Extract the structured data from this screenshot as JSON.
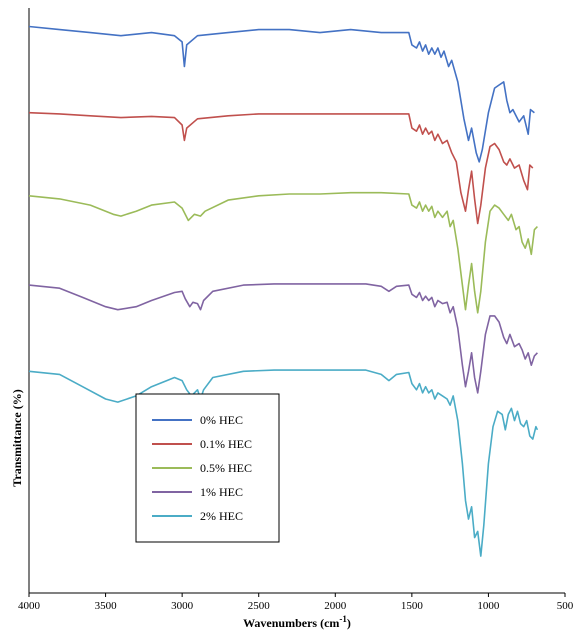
{
  "chart_data": {
    "type": "line",
    "title": "",
    "xlabel": "Wavenumbers (cm",
    "xlabel_sup": "-1",
    "xlabel_close": ")",
    "ylabel": "Transmittance (%)",
    "xlim": [
      4000,
      500
    ],
    "x_reversed": true,
    "y_units": "offset transmittance (unitless, stacked)",
    "xticks": [
      "4000",
      "3500",
      "3000",
      "2500",
      "2000",
      "1500",
      "1000",
      "500"
    ],
    "grid": false,
    "legend_position": "lower-left",
    "series": [
      {
        "name": "0% HEC",
        "color": "#4472C4",
        "points": [
          [
            4000,
            6.2
          ],
          [
            3800,
            6.15
          ],
          [
            3600,
            6.1
          ],
          [
            3400,
            6.05
          ],
          [
            3200,
            6.1
          ],
          [
            3050,
            6.05
          ],
          [
            3000,
            5.95
          ],
          [
            2985,
            5.55
          ],
          [
            2970,
            5.9
          ],
          [
            2900,
            6.05
          ],
          [
            2700,
            6.1
          ],
          [
            2500,
            6.15
          ],
          [
            2300,
            6.15
          ],
          [
            2100,
            6.1
          ],
          [
            1900,
            6.15
          ],
          [
            1700,
            6.1
          ],
          [
            1520,
            6.1
          ],
          [
            1500,
            5.9
          ],
          [
            1470,
            5.85
          ],
          [
            1450,
            5.95
          ],
          [
            1430,
            5.8
          ],
          [
            1410,
            5.9
          ],
          [
            1390,
            5.75
          ],
          [
            1370,
            5.85
          ],
          [
            1350,
            5.75
          ],
          [
            1330,
            5.85
          ],
          [
            1310,
            5.7
          ],
          [
            1290,
            5.8
          ],
          [
            1260,
            5.55
          ],
          [
            1240,
            5.65
          ],
          [
            1200,
            5.3
          ],
          [
            1160,
            4.7
          ],
          [
            1130,
            4.35
          ],
          [
            1110,
            4.55
          ],
          [
            1080,
            4.15
          ],
          [
            1060,
            4.0
          ],
          [
            1040,
            4.2
          ],
          [
            1000,
            4.8
          ],
          [
            960,
            5.2
          ],
          [
            930,
            5.25
          ],
          [
            900,
            5.3
          ],
          [
            880,
            5.0
          ],
          [
            860,
            4.8
          ],
          [
            840,
            4.85
          ],
          [
            800,
            4.65
          ],
          [
            770,
            4.75
          ],
          [
            740,
            4.45
          ],
          [
            725,
            4.85
          ],
          [
            700,
            4.8
          ]
        ]
      },
      {
        "name": "0.1% HEC",
        "color": "#C0504D",
        "points": [
          [
            4000,
            4.8
          ],
          [
            3800,
            4.78
          ],
          [
            3600,
            4.75
          ],
          [
            3400,
            4.72
          ],
          [
            3200,
            4.74
          ],
          [
            3050,
            4.72
          ],
          [
            3000,
            4.6
          ],
          [
            2985,
            4.35
          ],
          [
            2970,
            4.55
          ],
          [
            2900,
            4.7
          ],
          [
            2700,
            4.75
          ],
          [
            2500,
            4.78
          ],
          [
            2300,
            4.78
          ],
          [
            2100,
            4.78
          ],
          [
            1900,
            4.78
          ],
          [
            1700,
            4.78
          ],
          [
            1520,
            4.78
          ],
          [
            1500,
            4.55
          ],
          [
            1470,
            4.5
          ],
          [
            1450,
            4.6
          ],
          [
            1430,
            4.45
          ],
          [
            1410,
            4.55
          ],
          [
            1390,
            4.45
          ],
          [
            1370,
            4.5
          ],
          [
            1350,
            4.35
          ],
          [
            1330,
            4.45
          ],
          [
            1300,
            4.3
          ],
          [
            1270,
            4.35
          ],
          [
            1240,
            4.15
          ],
          [
            1210,
            4.0
          ],
          [
            1180,
            3.5
          ],
          [
            1150,
            3.2
          ],
          [
            1130,
            3.55
          ],
          [
            1110,
            3.85
          ],
          [
            1090,
            3.4
          ],
          [
            1070,
            3.0
          ],
          [
            1050,
            3.3
          ],
          [
            1020,
            3.9
          ],
          [
            990,
            4.25
          ],
          [
            960,
            4.3
          ],
          [
            930,
            4.2
          ],
          [
            900,
            4.0
          ],
          [
            880,
            3.95
          ],
          [
            860,
            4.05
          ],
          [
            830,
            3.9
          ],
          [
            800,
            3.95
          ],
          [
            770,
            3.7
          ],
          [
            745,
            3.55
          ],
          [
            730,
            3.95
          ],
          [
            710,
            3.9
          ]
        ]
      },
      {
        "name": "0.5% HEC",
        "color": "#9BBB59",
        "points": [
          [
            4000,
            3.45
          ],
          [
            3800,
            3.4
          ],
          [
            3600,
            3.3
          ],
          [
            3450,
            3.15
          ],
          [
            3400,
            3.12
          ],
          [
            3300,
            3.2
          ],
          [
            3200,
            3.3
          ],
          [
            3050,
            3.35
          ],
          [
            3000,
            3.25
          ],
          [
            2960,
            3.05
          ],
          [
            2920,
            3.15
          ],
          [
            2880,
            3.12
          ],
          [
            2850,
            3.2
          ],
          [
            2700,
            3.38
          ],
          [
            2500,
            3.45
          ],
          [
            2300,
            3.48
          ],
          [
            2100,
            3.48
          ],
          [
            1900,
            3.5
          ],
          [
            1700,
            3.5
          ],
          [
            1520,
            3.48
          ],
          [
            1500,
            3.3
          ],
          [
            1470,
            3.25
          ],
          [
            1450,
            3.35
          ],
          [
            1430,
            3.2
          ],
          [
            1410,
            3.3
          ],
          [
            1390,
            3.2
          ],
          [
            1370,
            3.28
          ],
          [
            1350,
            3.1
          ],
          [
            1330,
            3.2
          ],
          [
            1300,
            3.1
          ],
          [
            1270,
            3.2
          ],
          [
            1250,
            2.95
          ],
          [
            1230,
            3.05
          ],
          [
            1200,
            2.6
          ],
          [
            1170,
            2.0
          ],
          [
            1150,
            1.6
          ],
          [
            1130,
            2.0
          ],
          [
            1110,
            2.35
          ],
          [
            1090,
            1.9
          ],
          [
            1070,
            1.55
          ],
          [
            1050,
            1.9
          ],
          [
            1020,
            2.7
          ],
          [
            990,
            3.2
          ],
          [
            960,
            3.3
          ],
          [
            930,
            3.25
          ],
          [
            900,
            3.15
          ],
          [
            870,
            3.05
          ],
          [
            850,
            3.15
          ],
          [
            820,
            2.9
          ],
          [
            800,
            2.95
          ],
          [
            780,
            2.7
          ],
          [
            760,
            2.6
          ],
          [
            740,
            2.75
          ],
          [
            720,
            2.5
          ],
          [
            700,
            2.9
          ],
          [
            680,
            2.95
          ]
        ]
      },
      {
        "name": "1% HEC",
        "color": "#8064A2",
        "points": [
          [
            4000,
            2.0
          ],
          [
            3800,
            1.95
          ],
          [
            3650,
            1.8
          ],
          [
            3500,
            1.65
          ],
          [
            3420,
            1.6
          ],
          [
            3300,
            1.65
          ],
          [
            3200,
            1.75
          ],
          [
            3050,
            1.88
          ],
          [
            3000,
            1.9
          ],
          [
            2980,
            1.78
          ],
          [
            2950,
            1.65
          ],
          [
            2930,
            1.72
          ],
          [
            2900,
            1.7
          ],
          [
            2880,
            1.6
          ],
          [
            2860,
            1.75
          ],
          [
            2800,
            1.9
          ],
          [
            2600,
            2.0
          ],
          [
            2400,
            2.02
          ],
          [
            2200,
            2.02
          ],
          [
            2000,
            2.02
          ],
          [
            1800,
            2.02
          ],
          [
            1700,
            1.98
          ],
          [
            1650,
            1.9
          ],
          [
            1600,
            1.98
          ],
          [
            1520,
            2.0
          ],
          [
            1500,
            1.85
          ],
          [
            1470,
            1.8
          ],
          [
            1450,
            1.88
          ],
          [
            1430,
            1.75
          ],
          [
            1410,
            1.82
          ],
          [
            1390,
            1.75
          ],
          [
            1370,
            1.8
          ],
          [
            1350,
            1.65
          ],
          [
            1330,
            1.75
          ],
          [
            1300,
            1.7
          ],
          [
            1270,
            1.72
          ],
          [
            1250,
            1.55
          ],
          [
            1230,
            1.65
          ],
          [
            1200,
            1.3
          ],
          [
            1170,
            0.7
          ],
          [
            1150,
            0.35
          ],
          [
            1130,
            0.6
          ],
          [
            1110,
            0.9
          ],
          [
            1090,
            0.5
          ],
          [
            1070,
            0.25
          ],
          [
            1050,
            0.6
          ],
          [
            1020,
            1.2
          ],
          [
            990,
            1.5
          ],
          [
            960,
            1.5
          ],
          [
            930,
            1.4
          ],
          [
            900,
            1.15
          ],
          [
            880,
            1.05
          ],
          [
            860,
            1.2
          ],
          [
            830,
            1.0
          ],
          [
            800,
            1.05
          ],
          [
            780,
            0.95
          ],
          [
            760,
            0.8
          ],
          [
            740,
            0.9
          ],
          [
            720,
            0.7
          ],
          [
            700,
            0.85
          ],
          [
            680,
            0.9
          ]
        ]
      },
      {
        "name": "2% HEC",
        "color": "#4BACC6",
        "points": [
          [
            4000,
            0.6
          ],
          [
            3800,
            0.55
          ],
          [
            3650,
            0.35
          ],
          [
            3500,
            0.15
          ],
          [
            3420,
            0.1
          ],
          [
            3300,
            0.2
          ],
          [
            3200,
            0.35
          ],
          [
            3100,
            0.45
          ],
          [
            3050,
            0.5
          ],
          [
            3000,
            0.45
          ],
          [
            2970,
            0.3
          ],
          [
            2940,
            0.2
          ],
          [
            2920,
            0.25
          ],
          [
            2900,
            0.3
          ],
          [
            2880,
            0.15
          ],
          [
            2860,
            0.3
          ],
          [
            2800,
            0.5
          ],
          [
            2600,
            0.6
          ],
          [
            2400,
            0.62
          ],
          [
            2200,
            0.62
          ],
          [
            2000,
            0.62
          ],
          [
            1800,
            0.62
          ],
          [
            1700,
            0.55
          ],
          [
            1650,
            0.45
          ],
          [
            1600,
            0.55
          ],
          [
            1520,
            0.58
          ],
          [
            1500,
            0.4
          ],
          [
            1470,
            0.3
          ],
          [
            1450,
            0.4
          ],
          [
            1430,
            0.25
          ],
          [
            1410,
            0.35
          ],
          [
            1390,
            0.25
          ],
          [
            1370,
            0.3
          ],
          [
            1350,
            0.15
          ],
          [
            1330,
            0.25
          ],
          [
            1300,
            0.2
          ],
          [
            1270,
            0.15
          ],
          [
            1250,
            0.05
          ],
          [
            1230,
            0.2
          ],
          [
            1200,
            -0.2
          ],
          [
            1170,
            -0.9
          ],
          [
            1150,
            -1.5
          ],
          [
            1130,
            -1.8
          ],
          [
            1110,
            -1.6
          ],
          [
            1090,
            -2.1
          ],
          [
            1070,
            -2.0
          ],
          [
            1050,
            -2.4
          ],
          [
            1030,
            -1.9
          ],
          [
            1000,
            -0.9
          ],
          [
            970,
            -0.3
          ],
          [
            940,
            -0.05
          ],
          [
            910,
            -0.1
          ],
          [
            890,
            -0.35
          ],
          [
            870,
            -0.1
          ],
          [
            850,
            0.0
          ],
          [
            830,
            -0.2
          ],
          [
            810,
            -0.05
          ],
          [
            790,
            -0.25
          ],
          [
            770,
            -0.3
          ],
          [
            750,
            -0.2
          ],
          [
            730,
            -0.45
          ],
          [
            710,
            -0.5
          ],
          [
            690,
            -0.3
          ],
          [
            680,
            -0.35
          ]
        ]
      }
    ]
  }
}
